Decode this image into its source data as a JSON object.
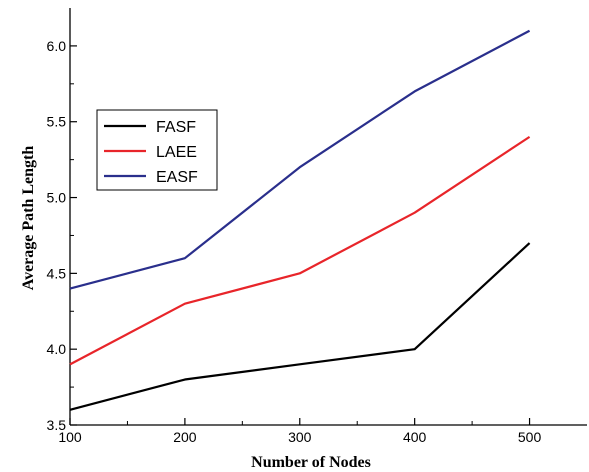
{
  "chart_data": {
    "type": "line",
    "x": [
      100,
      200,
      300,
      400,
      500
    ],
    "series": [
      {
        "name": "FASF",
        "color": "#000000",
        "values": [
          3.6,
          3.8,
          3.9,
          4.0,
          4.7
        ]
      },
      {
        "name": "LAEE",
        "color": "#e8252a",
        "values": [
          3.9,
          4.3,
          4.5,
          4.9,
          5.4
        ]
      },
      {
        "name": "EASF",
        "color": "#2a2f8c",
        "values": [
          4.4,
          4.6,
          5.2,
          5.7,
          6.1
        ]
      }
    ],
    "xlabel": "Number of Nodes",
    "ylabel": "Average Path Length",
    "xlim": [
      100,
      550
    ],
    "ylim": [
      3.5,
      6.25
    ],
    "xticks": [
      "100",
      "200",
      "300",
      "400",
      "500"
    ],
    "yticks": [
      "3.5",
      "4.0",
      "4.5",
      "5.0",
      "5.5",
      "6.0"
    ],
    "grid": false,
    "legend_position": "upper-left"
  }
}
